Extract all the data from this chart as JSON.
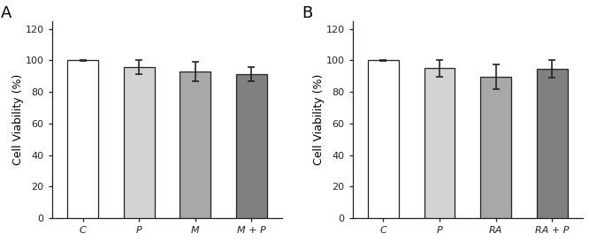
{
  "panel_A": {
    "label": "A",
    "categories": [
      "C",
      "P",
      "M",
      "M + P"
    ],
    "values": [
      100,
      95.5,
      93.0,
      91.5
    ],
    "errors": [
      0.5,
      4.5,
      6.0,
      4.5
    ],
    "bar_colors": [
      "#ffffff",
      "#d3d3d3",
      "#a8a8a8",
      "#808080"
    ],
    "bar_edgecolor": "#222222"
  },
  "panel_B": {
    "label": "B",
    "categories": [
      "C",
      "P",
      "RA",
      "RA + P"
    ],
    "values": [
      100,
      95.0,
      89.5,
      94.5
    ],
    "errors": [
      0.5,
      5.5,
      8.0,
      5.5
    ],
    "bar_colors": [
      "#ffffff",
      "#d3d3d3",
      "#a8a8a8",
      "#808080"
    ],
    "bar_edgecolor": "#222222"
  },
  "ylabel": "Cell Viability (%)",
  "ylim": [
    0,
    125
  ],
  "yticks": [
    0,
    20,
    40,
    60,
    80,
    100,
    120
  ],
  "background_color": "#ffffff",
  "label_fontsize": 9,
  "tick_fontsize": 8,
  "panel_label_fontsize": 13,
  "bar_width": 0.55,
  "capsize": 3,
  "elinewidth": 1.2,
  "ecapthick": 1.2,
  "linewidth": 0.9
}
